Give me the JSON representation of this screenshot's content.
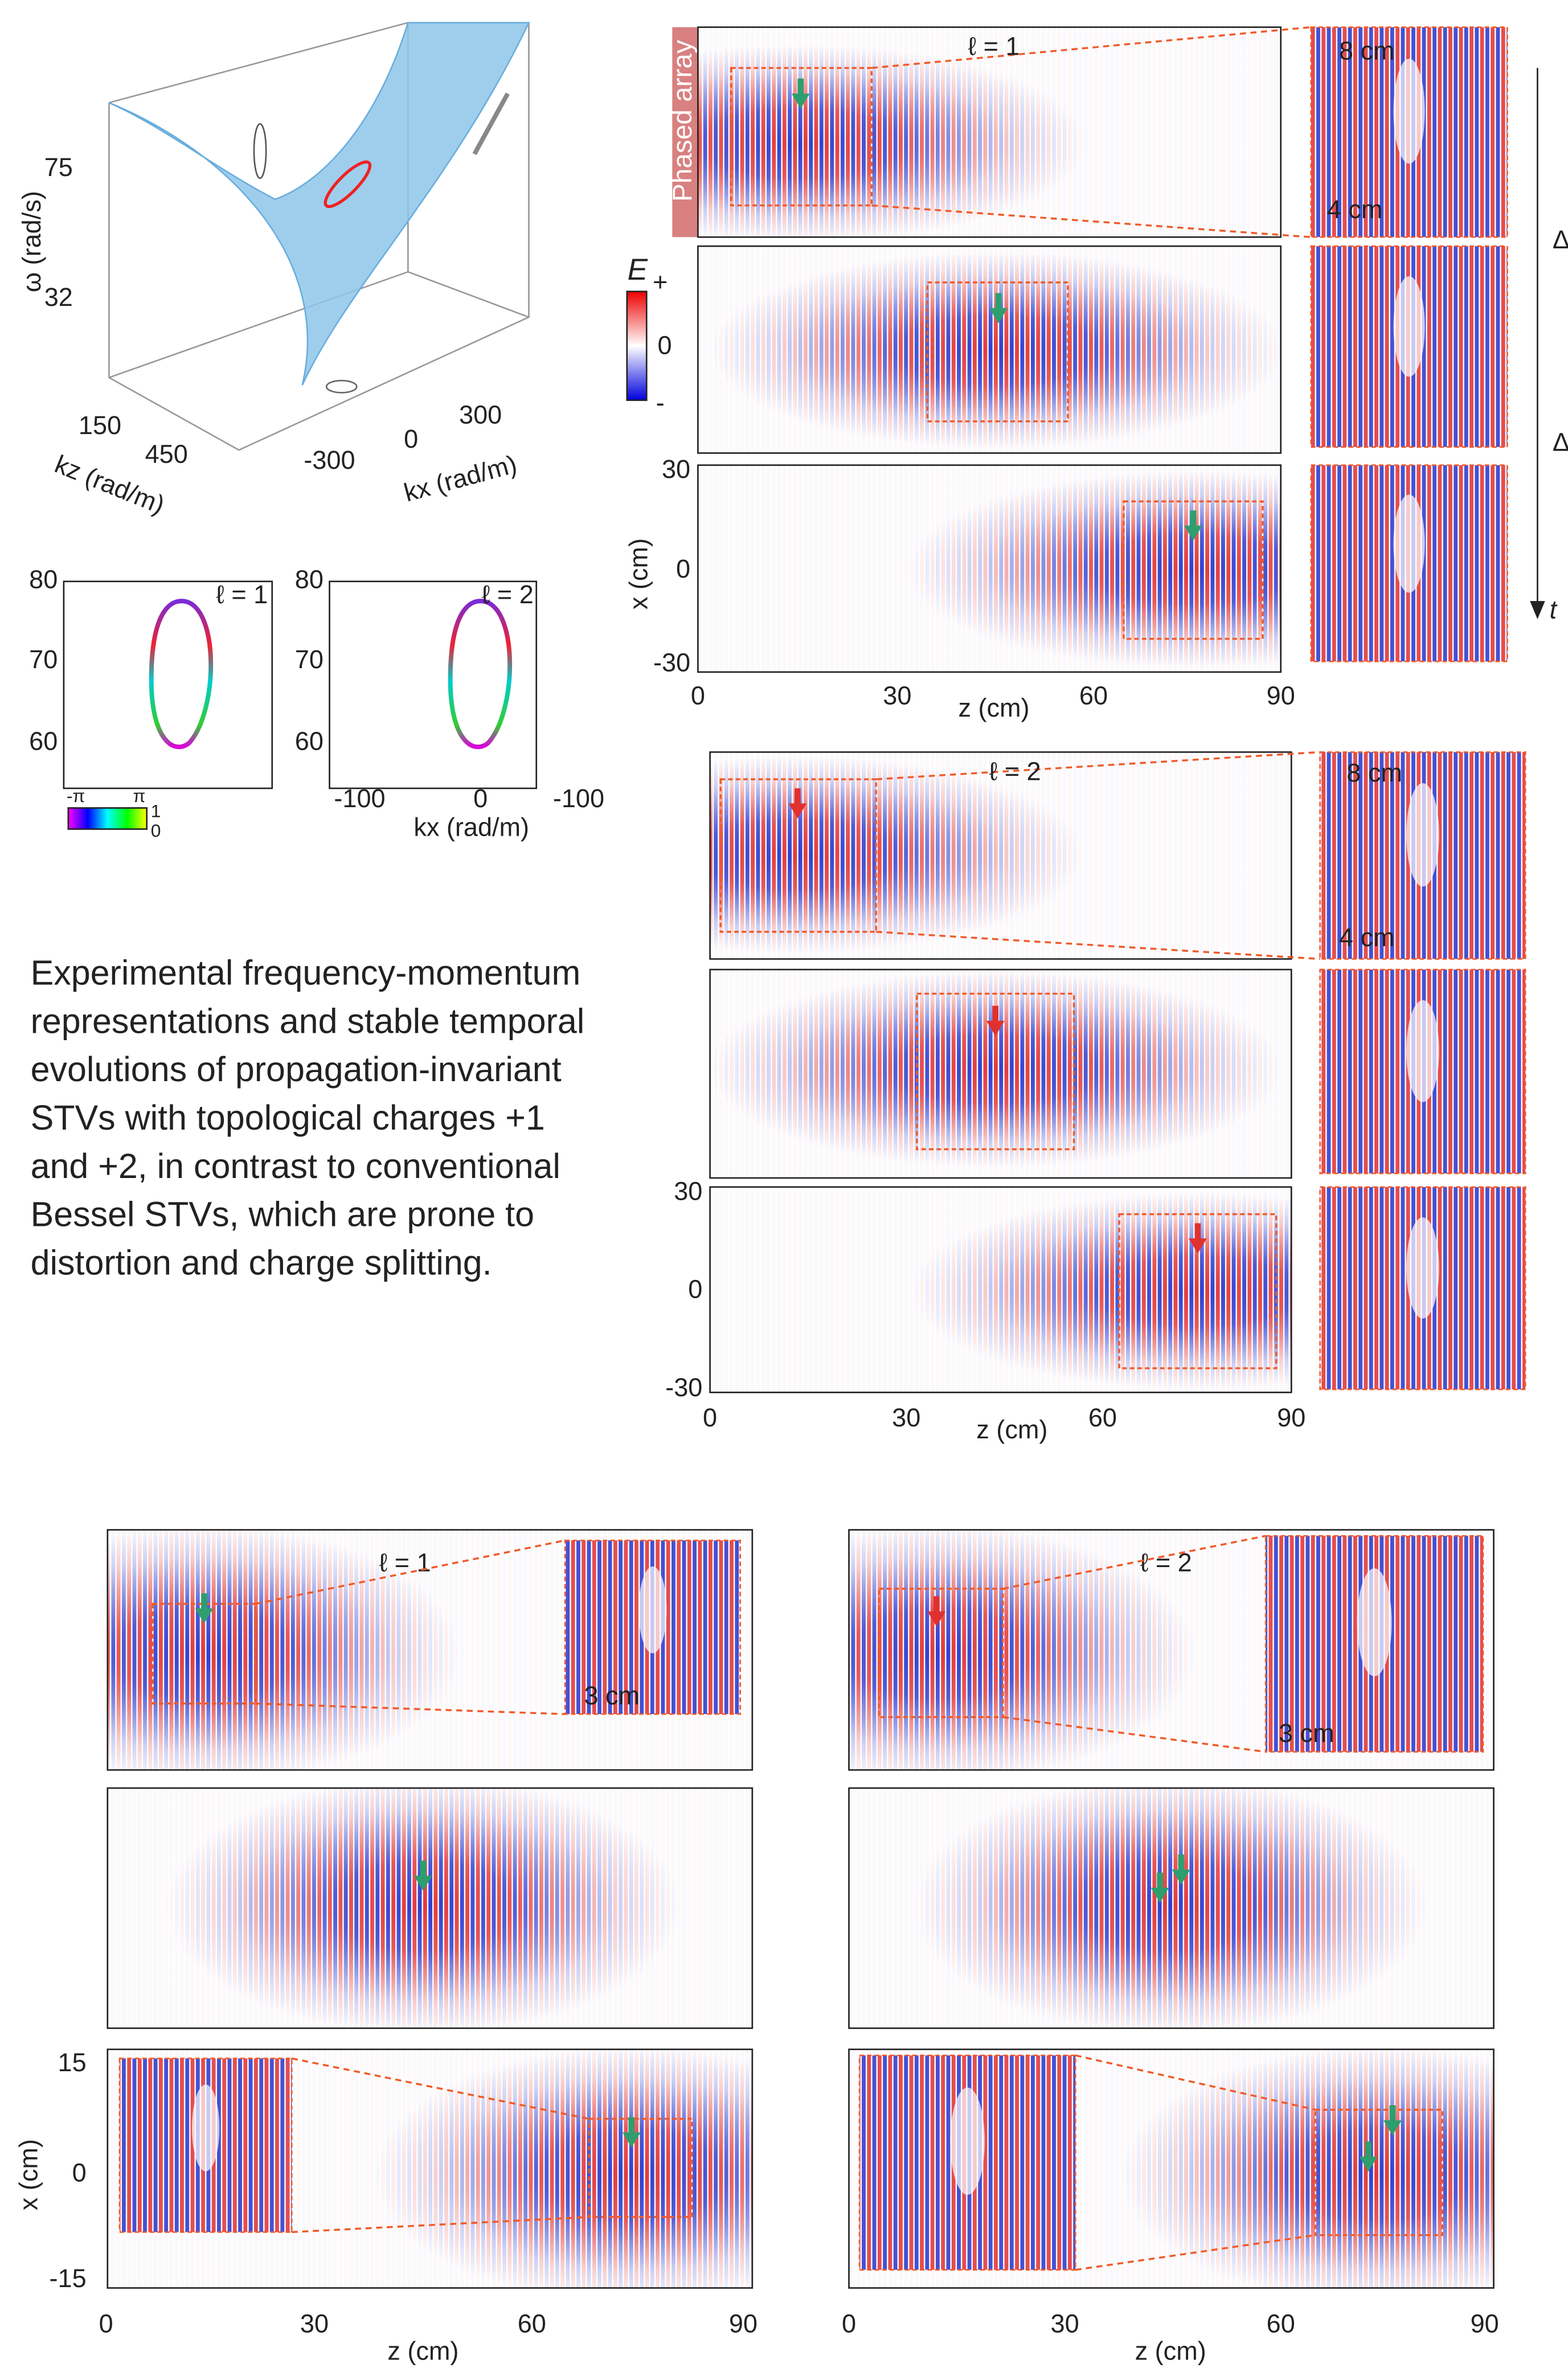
{
  "surface_plot": {
    "y_label": "ω (rad/s)",
    "y_ticks": [
      75,
      32
    ],
    "kz_label": "kz (rad/m)",
    "kz_ticks": [
      150,
      450
    ],
    "kx_label": "kx (rad/m)",
    "kx_ticks": [
      -300,
      0,
      300
    ]
  },
  "spectra": [
    {
      "label": "ℓ = 1",
      "y_ticks": [
        80,
        70,
        60
      ]
    },
    {
      "label": "ℓ = 2",
      "y_ticks": [
        80,
        70,
        60
      ],
      "x_ticks": [
        -100,
        0,
        -100
      ],
      "x_label": "kx (rad/m)"
    }
  ],
  "phase_colorbar": {
    "min": "-π",
    "max": "π",
    "top": 1,
    "bottom": 0
  },
  "field_colorbar": {
    "label": "E",
    "top": "+",
    "mid": 0,
    "bottom": "-"
  },
  "evolution_l1": {
    "source": "Phased array",
    "label": "ℓ = 1",
    "scale_x": "8 cm",
    "scale_z": "4 cm",
    "y_label": "x (cm)",
    "y_ticks": [
      30,
      0,
      -30
    ],
    "x_ticks": [
      0,
      30,
      60,
      90
    ],
    "x_label": "z (cm)",
    "interval": "Δt",
    "time": "t"
  },
  "evolution_l2": {
    "label": "ℓ = 2",
    "scale_x": "8 cm",
    "scale_z": "4 cm",
    "y_ticks": [
      30,
      0,
      -30
    ],
    "x_ticks": [
      0,
      30,
      60,
      90
    ],
    "x_label": "z (cm)"
  },
  "caption": [
    "Experimental frequency-momentum",
    "representations and stable temporal",
    "evolutions of propagation-invariant",
    "STVs with topological charges +1",
    "and +2, in contrast to conventional",
    "Bessel STVs, which are prone to",
    "distortion and charge splitting."
  ],
  "bessel": {
    "y_label": "x (cm)",
    "y_ticks": [
      15,
      0,
      -15
    ],
    "panels": [
      {
        "label": "ℓ = 1",
        "scale": "3 cm",
        "x_ticks": [
          0,
          30,
          60,
          90
        ],
        "x_label": "z (cm)"
      },
      {
        "label": "ℓ = 2",
        "scale": "3 cm",
        "x_ticks": [
          0,
          30,
          60,
          90
        ],
        "x_label": "z (cm)"
      }
    ]
  }
}
